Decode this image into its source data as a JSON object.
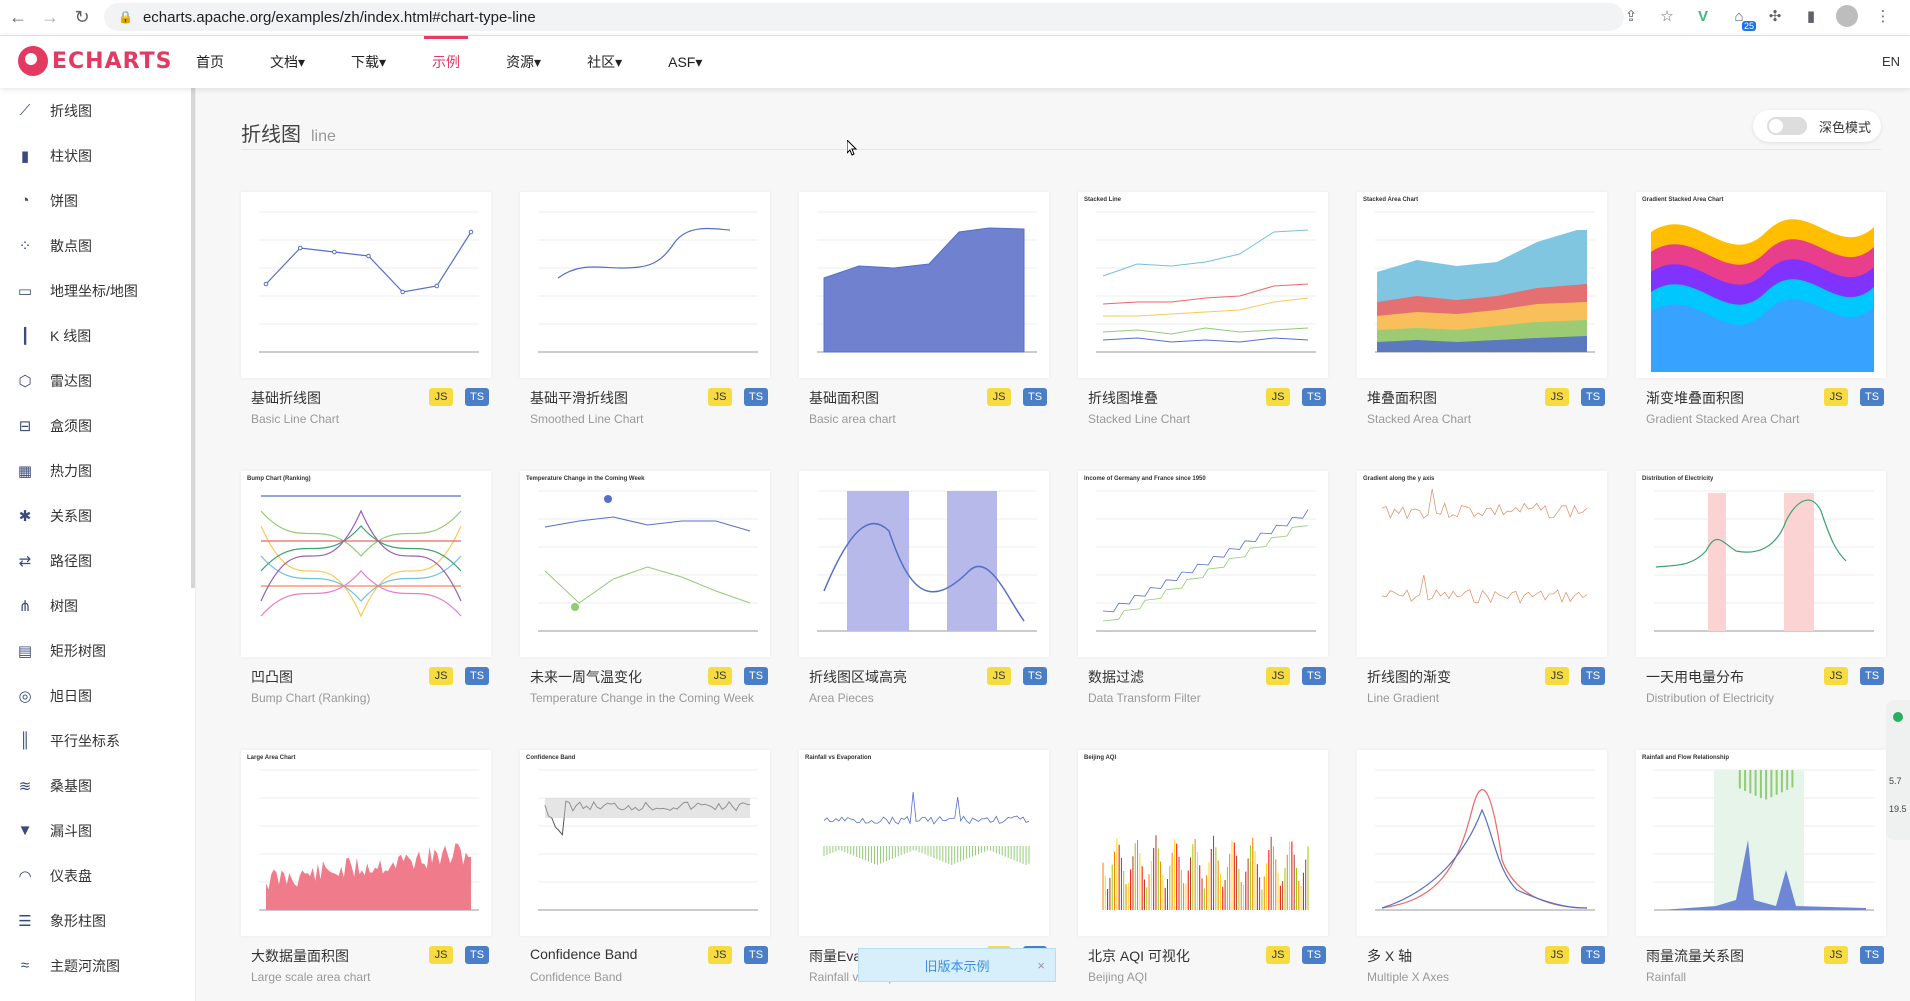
{
  "browser": {
    "url": "echarts.apache.org/examples/zh/index.html#chart-type-line",
    "ext_badge": "25"
  },
  "nav": {
    "logo": "ECHARTS",
    "items": [
      "首页",
      "文档▾",
      "下载▾",
      "示例",
      "资源▾",
      "社区▾",
      "ASF▾"
    ],
    "active": "示例",
    "lang": "EN"
  },
  "sidebar": {
    "items": [
      {
        "label": "折线图",
        "icon": "line-chart-icon"
      },
      {
        "label": "柱状图",
        "icon": "bar-chart-icon"
      },
      {
        "label": "饼图",
        "icon": "pie-chart-icon"
      },
      {
        "label": "散点图",
        "icon": "scatter-chart-icon"
      },
      {
        "label": "地理坐标/地图",
        "icon": "map-icon"
      },
      {
        "label": "K 线图",
        "icon": "candlestick-icon"
      },
      {
        "label": "雷达图",
        "icon": "radar-icon"
      },
      {
        "label": "盒须图",
        "icon": "boxplot-icon"
      },
      {
        "label": "热力图",
        "icon": "heatmap-icon"
      },
      {
        "label": "关系图",
        "icon": "graph-icon"
      },
      {
        "label": "路径图",
        "icon": "lines-icon"
      },
      {
        "label": "树图",
        "icon": "tree-icon"
      },
      {
        "label": "矩形树图",
        "icon": "treemap-icon"
      },
      {
        "label": "旭日图",
        "icon": "sunburst-icon"
      },
      {
        "label": "平行坐标系",
        "icon": "parallel-icon"
      },
      {
        "label": "桑基图",
        "icon": "sankey-icon"
      },
      {
        "label": "漏斗图",
        "icon": "funnel-icon"
      },
      {
        "label": "仪表盘",
        "icon": "gauge-icon"
      },
      {
        "label": "象形柱图",
        "icon": "pictorial-bar-icon"
      },
      {
        "label": "主题河流图",
        "icon": "theme-river-icon"
      }
    ]
  },
  "page": {
    "title": "折线图",
    "subtitle": "line",
    "dark_mode_label": "深色模式"
  },
  "tags": {
    "js": "JS",
    "ts": "TS"
  },
  "cards": [
    {
      "title": "基础折线图",
      "subtitle": "Basic Line Chart",
      "kind": "line"
    },
    {
      "title": "基础平滑折线图",
      "subtitle": "Smoothed Line Chart",
      "kind": "smooth"
    },
    {
      "title": "基础面积图",
      "subtitle": "Basic area chart",
      "kind": "area"
    },
    {
      "title": "折线图堆叠",
      "subtitle": "Stacked Line Chart",
      "kind": "stacked-line"
    },
    {
      "title": "堆叠面积图",
      "subtitle": "Stacked Area Chart",
      "kind": "stacked-area"
    },
    {
      "title": "渐变堆叠面积图",
      "subtitle": "Gradient Stacked Area Chart",
      "kind": "gradient-area"
    },
    {
      "title": "凹凸图",
      "subtitle": "Bump Chart (Ranking)",
      "kind": "bump"
    },
    {
      "title": "未来一周气温变化",
      "subtitle": "Temperature Change in the Coming Week",
      "kind": "temperature"
    },
    {
      "title": "折线图区域高亮",
      "subtitle": "Area Pieces",
      "kind": "pieces"
    },
    {
      "title": "数据过滤",
      "subtitle": "Data Transform Filter",
      "kind": "filter"
    },
    {
      "title": "折线图的渐变",
      "subtitle": "Line Gradient",
      "kind": "gradient-line"
    },
    {
      "title": "一天用电量分布",
      "subtitle": "Distribution of Electricity",
      "kind": "electricity"
    },
    {
      "title": "大数据量面积图",
      "subtitle": "Large scale area chart",
      "kind": "large-area"
    },
    {
      "title": "Confidence Band",
      "subtitle": "Confidence Band",
      "kind": "band"
    },
    {
      "title": "雨量Eva",
      "subtitle": "Rainfall vs Evaporation",
      "kind": "rainfall"
    },
    {
      "title": "北京 AQI 可视化",
      "subtitle": "Beijing AQI",
      "kind": "aqi"
    },
    {
      "title": "多 X 轴",
      "subtitle": "Multiple X Axes",
      "kind": "multi-x"
    },
    {
      "title": "雨量流量关系图",
      "subtitle": "Rainfall",
      "kind": "rainflow"
    }
  ],
  "thumb_titles": {
    "stacked-line": "Stacked Line",
    "stacked-area": "Stacked Area Chart",
    "gradient-area": "Gradient Stacked Area Chart",
    "bump": "Bump Chart (Ranking)",
    "temperature": "Temperature Change in the Coming Week",
    "filter": "Income of Germany and France since 1950",
    "gradient-line": "Gradient along the y axis",
    "electricity": "Distribution of Electricity",
    "large-area": "Large Area Chart",
    "band": "Confidence Band",
    "rainfall": "Rainfall vs Evaporation",
    "aqi": "Beijing AQI",
    "rainflow": "Rainfall and Flow Relationship"
  },
  "toast": {
    "label": "旧版本示例",
    "close": "×"
  },
  "widget": {
    "line1": "5.7",
    "line2": "19.5"
  }
}
